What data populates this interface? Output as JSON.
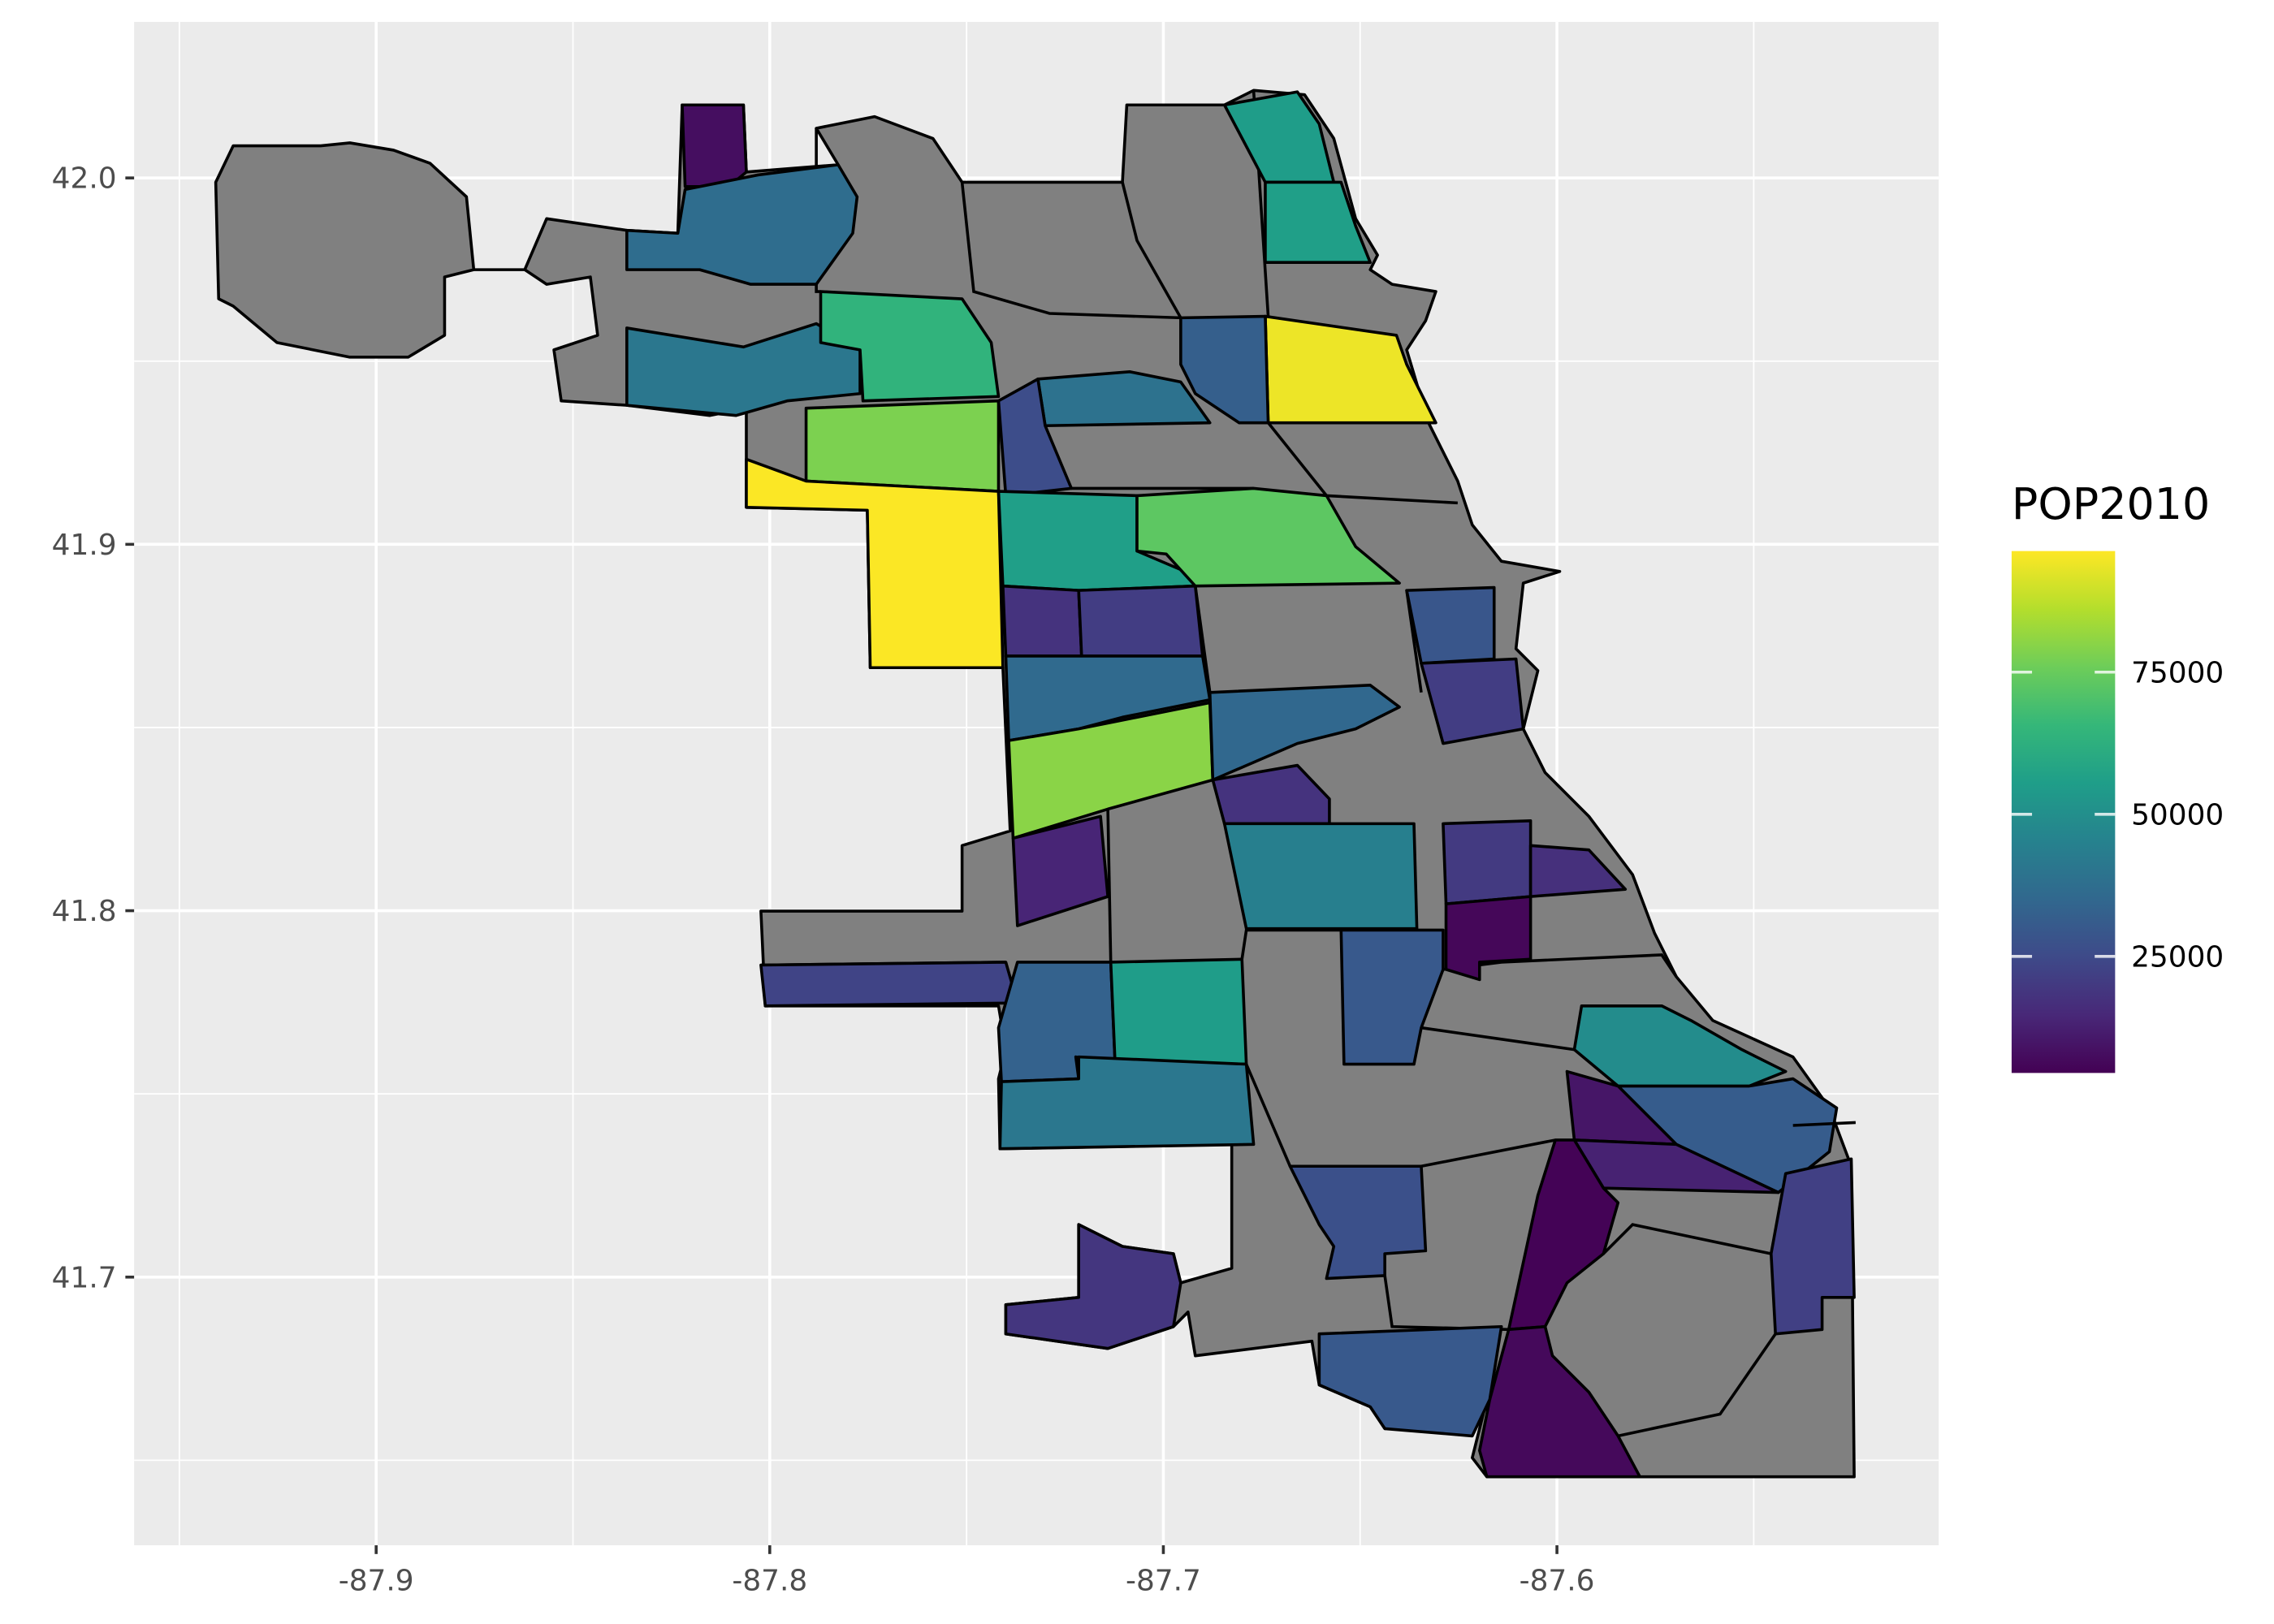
{
  "chart_data": {
    "type": "choropleth",
    "xlim": [
      -87.9615,
      -87.503
    ],
    "ylim": [
      41.6268,
      42.0426
    ],
    "xticks": [
      -87.9,
      -87.8,
      -87.7,
      -87.6
    ],
    "yticks": [
      {
        "value": 41.7,
        "label": "41.7"
      },
      {
        "value": 41.8,
        "label": "41.8"
      },
      {
        "value": 41.9,
        "label": "41.9"
      },
      {
        "value": 42.0,
        "label": "42.0"
      }
    ],
    "grid": true,
    "na_color": "#808080",
    "legend_title": "POP2010",
    "colorbar": {
      "lim": [
        4500,
        96300
      ],
      "ticks": [
        25000,
        50000,
        75000
      ],
      "palette": [
        "#440154",
        "#482878",
        "#3E4A89",
        "#31688E",
        "#26828E",
        "#1F9E89",
        "#35B779",
        "#6DCD59",
        "#B4DE2C",
        "#FDE725"
      ]
    },
    "values": [
      8000,
      37000,
      41000,
      64000,
      78000,
      96000,
      94000,
      55000,
      56000,
      32000,
      39000,
      26000,
      56000,
      73000,
      18000,
      21000,
      36000,
      80000,
      35000,
      18000,
      29000,
      21000,
      44000,
      14000,
      20000,
      17000,
      6000,
      23000,
      33000,
      55000,
      30000,
      41000,
      49000,
      31000,
      10000,
      13000,
      27000,
      5000,
      6500,
      22000,
      19000,
      30000
    ]
  }
}
